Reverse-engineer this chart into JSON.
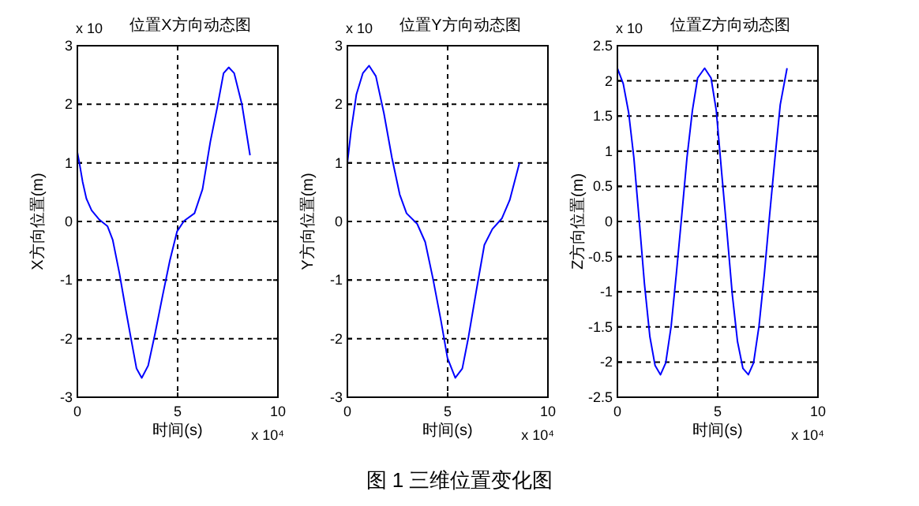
{
  "chart_data": [
    {
      "type": "line",
      "title": "位置X方向动态图",
      "xlabel": "时间(s)",
      "ylabel": "X方向位置(m)",
      "annotations": [
        "x 10⁴",
        "x 10"
      ],
      "xlim": [
        0,
        10
      ],
      "xticks": [
        0,
        5,
        10
      ],
      "ylim": [
        -3,
        3
      ],
      "yticks": [
        -3,
        -2,
        -1,
        0,
        1,
        2,
        3
      ],
      "grid": true,
      "series": [
        {
          "color": "#0000ff",
          "x": [
            0,
            0.1,
            0.26,
            0.45,
            0.71,
            1.1,
            1.5,
            1.76,
            2.1,
            2.42,
            2.68,
            2.95,
            3.21,
            3.53,
            3.87,
            4.26,
            4.61,
            4.97,
            5.32,
            5.84,
            6.24,
            6.63,
            6.97,
            7.29,
            7.55,
            7.82,
            8.21,
            8.61
          ],
          "values": [
            1.18,
            1.0,
            0.68,
            0.39,
            0.19,
            0.03,
            -0.08,
            -0.31,
            -0.89,
            -1.52,
            -2.01,
            -2.51,
            -2.67,
            -2.46,
            -1.92,
            -1.25,
            -0.67,
            -0.17,
            0.01,
            0.14,
            0.55,
            1.36,
            1.94,
            2.53,
            2.63,
            2.53,
            1.99,
            1.13
          ]
        }
      ]
    },
    {
      "type": "line",
      "title": "位置Y方向动态图",
      "xlabel": "时间(s)",
      "ylabel": "Y方向位置(m)",
      "annotations": [
        "x 10⁴",
        "x 10",
        "图 1 三维位置变化图"
      ],
      "xlim": [
        0,
        10
      ],
      "xticks": [
        0,
        5,
        10
      ],
      "ylim": [
        -3,
        3
      ],
      "yticks": [
        -3,
        -2,
        -1,
        0,
        1,
        2,
        3
      ],
      "grid": true,
      "series": [
        {
          "color": "#0000ff",
          "x": [
            0,
            0.18,
            0.45,
            0.77,
            1.08,
            1.42,
            1.82,
            2.22,
            2.61,
            2.95,
            3.48,
            3.88,
            4.27,
            4.67,
            4.99,
            5.38,
            5.73,
            6.04,
            6.44,
            6.83,
            7.23,
            7.7,
            8.1,
            8.58
          ],
          "values": [
            1.0,
            1.54,
            2.17,
            2.53,
            2.66,
            2.48,
            1.85,
            1.09,
            0.46,
            0.14,
            -0.04,
            -0.35,
            -0.98,
            -1.7,
            -2.33,
            -2.67,
            -2.51,
            -1.97,
            -1.16,
            -0.4,
            -0.13,
            0.05,
            0.37,
            1.0
          ]
        }
      ]
    },
    {
      "type": "line",
      "title": "位置Z方向动态图",
      "xlabel": "时间(s)",
      "ylabel": "Z方向位置(m)",
      "annotations": [
        "x 10⁴",
        "x 10"
      ],
      "xlim": [
        0,
        10
      ],
      "xticks": [
        0,
        5,
        10
      ],
      "ylim": [
        -2.5,
        2.5
      ],
      "yticks": [
        -2.5,
        -2,
        -1.5,
        -1,
        -0.5,
        0,
        0.5,
        1,
        1.5,
        2,
        2.5
      ],
      "grid": true,
      "series": [
        {
          "color": "#0000ff",
          "x": [
            0,
            0.29,
            0.56,
            0.82,
            1.09,
            1.35,
            1.62,
            1.88,
            2.15,
            2.41,
            2.68,
            2.94,
            3.21,
            3.47,
            3.74,
            4.0,
            4.35,
            4.67,
            4.93,
            5.2,
            5.46,
            5.73,
            5.99,
            6.26,
            6.53,
            6.79,
            7.06,
            7.33,
            7.59,
            7.86,
            8.12,
            8.46
          ],
          "values": [
            2.18,
            1.96,
            1.55,
            0.91,
            0.01,
            -0.89,
            -1.64,
            -2.05,
            -2.18,
            -2.01,
            -1.49,
            -0.74,
            0.09,
            0.91,
            1.58,
            2.04,
            2.18,
            2.04,
            1.58,
            0.69,
            -0.14,
            -1.04,
            -1.71,
            -2.09,
            -2.18,
            -2.01,
            -1.49,
            -0.74,
            0.09,
            0.91,
            1.66,
            2.18
          ]
        }
      ]
    }
  ]
}
